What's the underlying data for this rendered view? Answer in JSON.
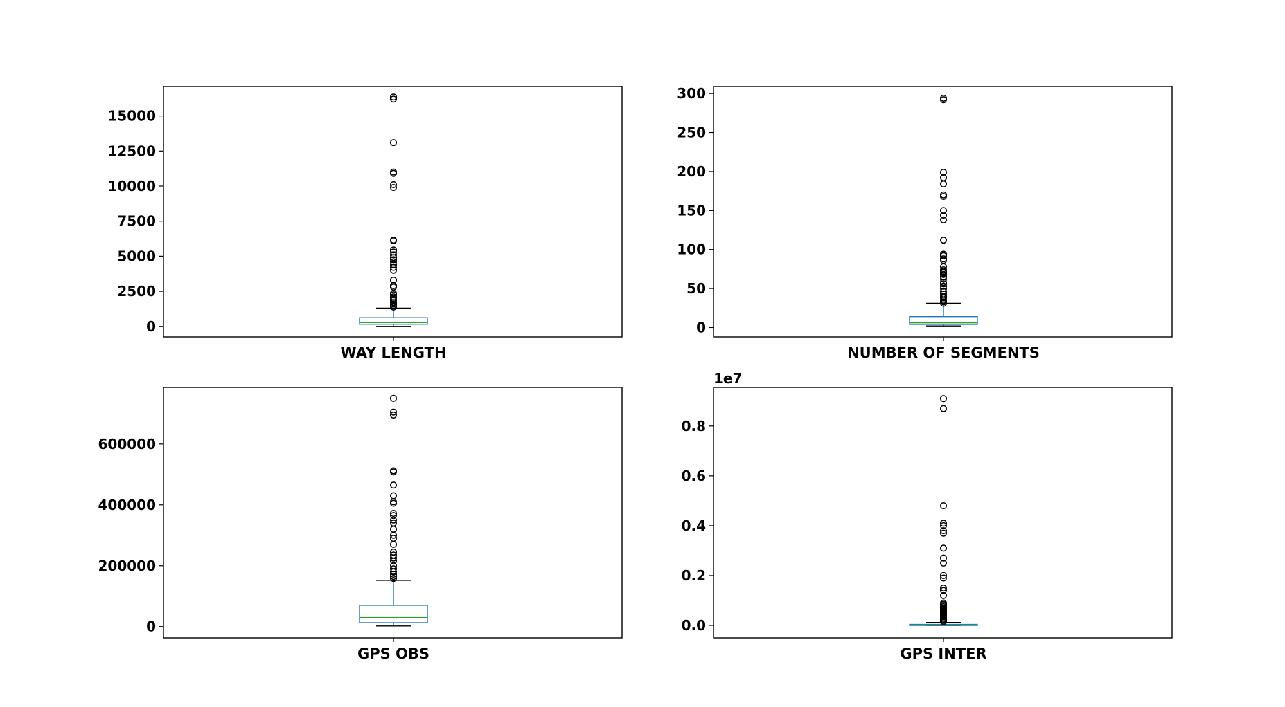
{
  "colors": {
    "box": "#1f77b4",
    "median": "#2ca02c",
    "whisker": "#1f77b4",
    "cap": "#000000",
    "flier": "#000000",
    "frame": "#000000"
  },
  "chart_data": [
    {
      "type": "box",
      "category": "WAY LENGTH",
      "yticks": [
        0,
        2500,
        5000,
        7500,
        10000,
        12500,
        15000
      ],
      "ytick_labels": [
        "0",
        "2500",
        "5000",
        "7500",
        "10000",
        "12500",
        "15000"
      ],
      "ylim": [
        -750,
        17100
      ],
      "offset_text": "",
      "box": {
        "whisker_low": 0,
        "q1": 150,
        "median": 270,
        "q3": 620,
        "whisker_high": 1300
      },
      "fliers": [
        1380,
        1500,
        1600,
        1700,
        1850,
        2000,
        2100,
        2250,
        2350,
        2800,
        2900,
        3300,
        4000,
        4200,
        4400,
        4600,
        4750,
        4900,
        5100,
        5300,
        5450,
        6100,
        6150,
        9900,
        10100,
        10900,
        11000,
        13100,
        16200,
        16350
      ],
      "grid": false
    },
    {
      "type": "box",
      "category": "NUMBER OF SEGMENTS",
      "yticks": [
        0,
        50,
        100,
        150,
        200,
        250,
        300
      ],
      "ytick_labels": [
        "0",
        "50",
        "100",
        "150",
        "200",
        "250",
        "300"
      ],
      "ylim": [
        -12,
        309
      ],
      "offset_text": "",
      "box": {
        "whisker_low": 2,
        "q1": 4,
        "median": 6,
        "q3": 14,
        "whisker_high": 31
      },
      "fliers": [
        31,
        33,
        35,
        38,
        40,
        43,
        46,
        50,
        53,
        56,
        58,
        62,
        65,
        68,
        70,
        72,
        74,
        78,
        86,
        88,
        92,
        94,
        112,
        138,
        144,
        150,
        168,
        170,
        184,
        192,
        199,
        292,
        294
      ],
      "grid": false
    },
    {
      "type": "box",
      "category": "GPS OBS",
      "yticks": [
        0,
        200000,
        400000,
        600000
      ],
      "ytick_labels": [
        "0",
        "200000",
        "400000",
        "600000"
      ],
      "ylim": [
        -37000,
        786000
      ],
      "offset_text": "",
      "box": {
        "whisker_low": 2000,
        "q1": 13000,
        "median": 30000,
        "q3": 70000,
        "whisker_high": 152000
      },
      "fliers": [
        158000,
        165000,
        172000,
        180000,
        190000,
        200000,
        215000,
        225000,
        235000,
        245000,
        270000,
        290000,
        300000,
        320000,
        340000,
        350000,
        365000,
        372000,
        405000,
        410000,
        430000,
        465000,
        508000,
        512000,
        695000,
        705000,
        750000
      ],
      "grid": false
    },
    {
      "type": "box",
      "category": "GPS INTER",
      "yticks": [
        0.0,
        0.2,
        0.4,
        0.6,
        0.8
      ],
      "ytick_labels": [
        "0.0",
        "0.2",
        "0.4",
        "0.6",
        "0.8"
      ],
      "ylim": [
        -0.05,
        0.955
      ],
      "offset_text": "1e7",
      "box": {
        "whisker_low": 0.0,
        "q1": 0.001,
        "median": 0.002,
        "q3": 0.004,
        "whisker_high": 0.012
      },
      "fliers": [
        0.015,
        0.02,
        0.025,
        0.03,
        0.035,
        0.04,
        0.045,
        0.05,
        0.055,
        0.06,
        0.065,
        0.07,
        0.075,
        0.08,
        0.085,
        0.09,
        0.12,
        0.14,
        0.15,
        0.19,
        0.2,
        0.25,
        0.27,
        0.31,
        0.37,
        0.38,
        0.4,
        0.41,
        0.48,
        0.87,
        0.91
      ],
      "grid": false
    }
  ]
}
